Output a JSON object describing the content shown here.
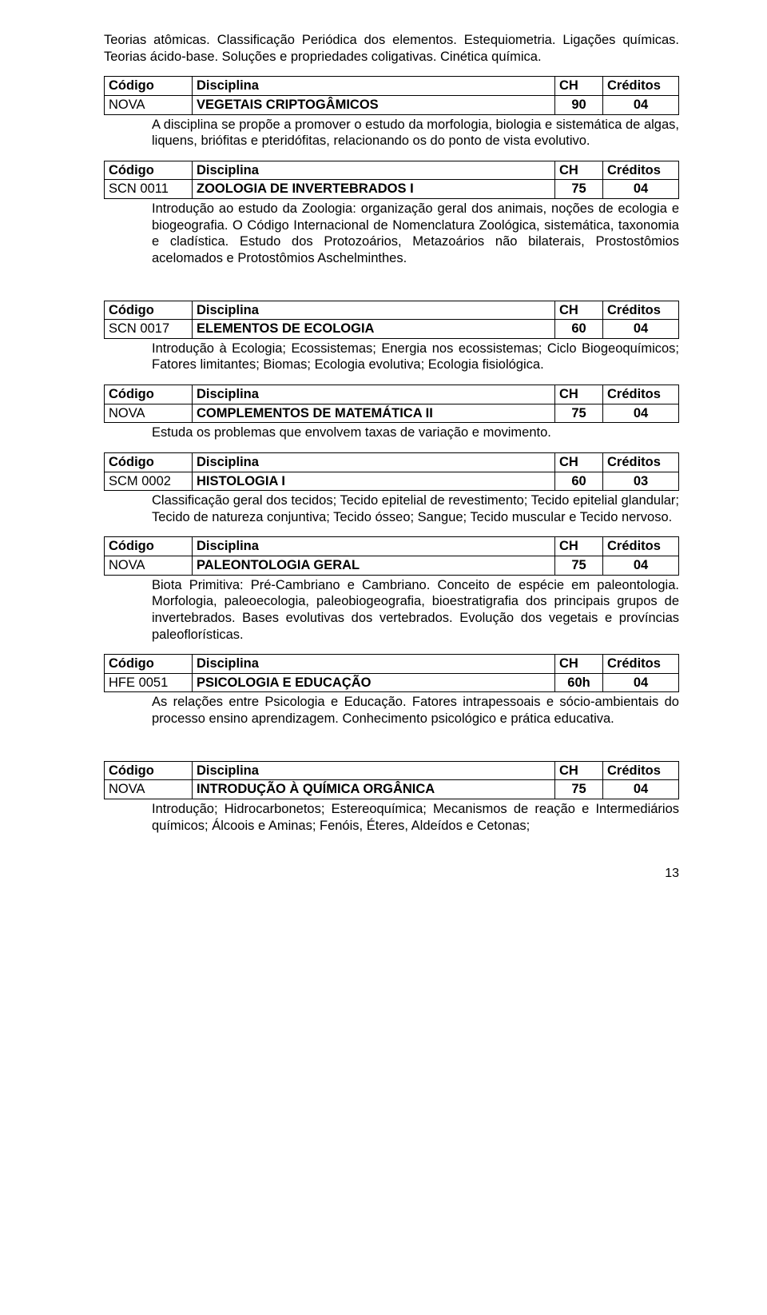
{
  "intro": "Teorias atômicas. Classificação Periódica dos elementos. Estequiometria. Ligações químicas. Teorias ácido-base. Soluções e propriedades coligativas. Cinética química.",
  "headers": {
    "c1": "Código",
    "c2": "Disciplina",
    "c3": "CH",
    "c4": "Créditos"
  },
  "blocks": [
    {
      "code": "NOVA",
      "name": "VEGETAIS CRIPTOGÂMICOS",
      "ch": "90",
      "cr": "04",
      "desc": "A disciplina se propõe a promover o estudo da morfologia, biologia e sistemática de algas, liquens, briófitas e pteridófitas, relacionando os do ponto de vista evolutivo.",
      "gap_after": false
    },
    {
      "code": "SCN 0011",
      "name": "ZOOLOGIA DE INVERTEBRADOS I",
      "ch": "75",
      "cr": "04",
      "desc": "Introdução ao estudo da Zoologia: organização geral dos animais, noções de ecologia e biogeografia. O Código Internacional de Nomenclatura Zoológica, sistemática, taxonomia e cladística. Estudo dos Protozoários, Metazoários não bilaterais, Prostostômios acelomados e Protostômios Aschelminthes.",
      "gap_after": true
    },
    {
      "code": "SCN 0017",
      "name": "ELEMENTOS DE ECOLOGIA",
      "ch": "60",
      "cr": "04",
      "desc": "Introdução à Ecologia; Ecossistemas; Energia nos ecossistemas; Ciclo Biogeoquímicos; Fatores limitantes; Biomas; Ecologia evolutiva; Ecologia fisiológica.",
      "gap_after": false
    },
    {
      "code": "NOVA",
      "name": "COMPLEMENTOS DE MATEMÁTICA II",
      "ch": "75",
      "cr": "04",
      "desc": "Estuda os problemas que envolvem taxas de variação e movimento.",
      "gap_after": false
    },
    {
      "code": "SCM 0002",
      "name": "HISTOLOGIA I",
      "ch": "60",
      "cr": "03",
      "desc": "Classificação geral dos tecidos; Tecido epitelial de revestimento; Tecido epitelial glandular; Tecido de natureza conjuntiva; Tecido ósseo; Sangue; Tecido muscular e Tecido nervoso.",
      "gap_after": false
    },
    {
      "code": "NOVA",
      "name": "PALEONTOLOGIA GERAL",
      "ch": "75",
      "cr": "04",
      "desc": "Biota Primitiva: Pré-Cambriano e Cambriano. Conceito de espécie em paleontologia. Morfologia, paleoecologia, paleobiogeografia, bioestratigrafia dos principais grupos de invertebrados. Bases evolutivas dos vertebrados. Evolução dos vegetais e províncias paleoflorísticas.",
      "gap_after": false
    },
    {
      "code": "HFE 0051",
      "name": "PSICOLOGIA E EDUCAÇÃO",
      "ch": "60h",
      "cr": "04",
      "desc": "As relações entre Psicologia e Educação. Fatores intrapessoais e sócio-ambientais do processo ensino aprendizagem. Conhecimento psicológico e prática educativa.",
      "gap_after": true
    },
    {
      "code": "NOVA",
      "name": "INTRODUÇÃO À QUÍMICA ORGÂNICA",
      "ch": "75",
      "cr": "04",
      "desc": "Introdução; Hidrocarbonetos; Estereoquímica; Mecanismos de reação e Intermediários químicos; Álcoois e Aminas; Fenóis, Éteres, Aldeídos e Cetonas;",
      "gap_after": false
    }
  ],
  "pagenum": "13"
}
